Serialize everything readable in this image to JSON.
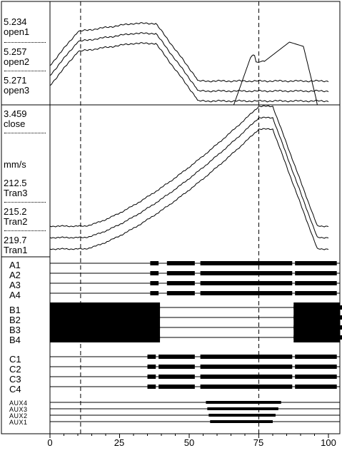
{
  "open_panel": {
    "open1": {
      "value": "5.234",
      "label": "open1"
    },
    "open2": {
      "value": "5.257",
      "label": "open2"
    },
    "open3": {
      "value": "5.271",
      "label": "open3"
    },
    "close": {
      "value": "3.459",
      "label": "close"
    }
  },
  "tran_panel": {
    "unit": "mm/s",
    "tran3": {
      "value": "212.5",
      "label": "Tran3"
    },
    "tran2": {
      "value": "215.2",
      "label": "Tran2"
    },
    "tran1": {
      "value": "219.7",
      "label": "Tran1"
    }
  },
  "channels": {
    "a": [
      "A1",
      "A2",
      "A3",
      "A4"
    ],
    "b": [
      "B1",
      "B2",
      "B3",
      "B4"
    ],
    "c": [
      "C1",
      "C2",
      "C3",
      "C4"
    ],
    "aux": [
      "AUX4",
      "AUX3",
      "AUX2",
      "AUX1"
    ]
  },
  "x_axis": {
    "ticks": [
      "0",
      "25",
      "50",
      "75",
      "100"
    ],
    "min": 0,
    "max": 100
  },
  "cursors": [
    11,
    75
  ]
}
